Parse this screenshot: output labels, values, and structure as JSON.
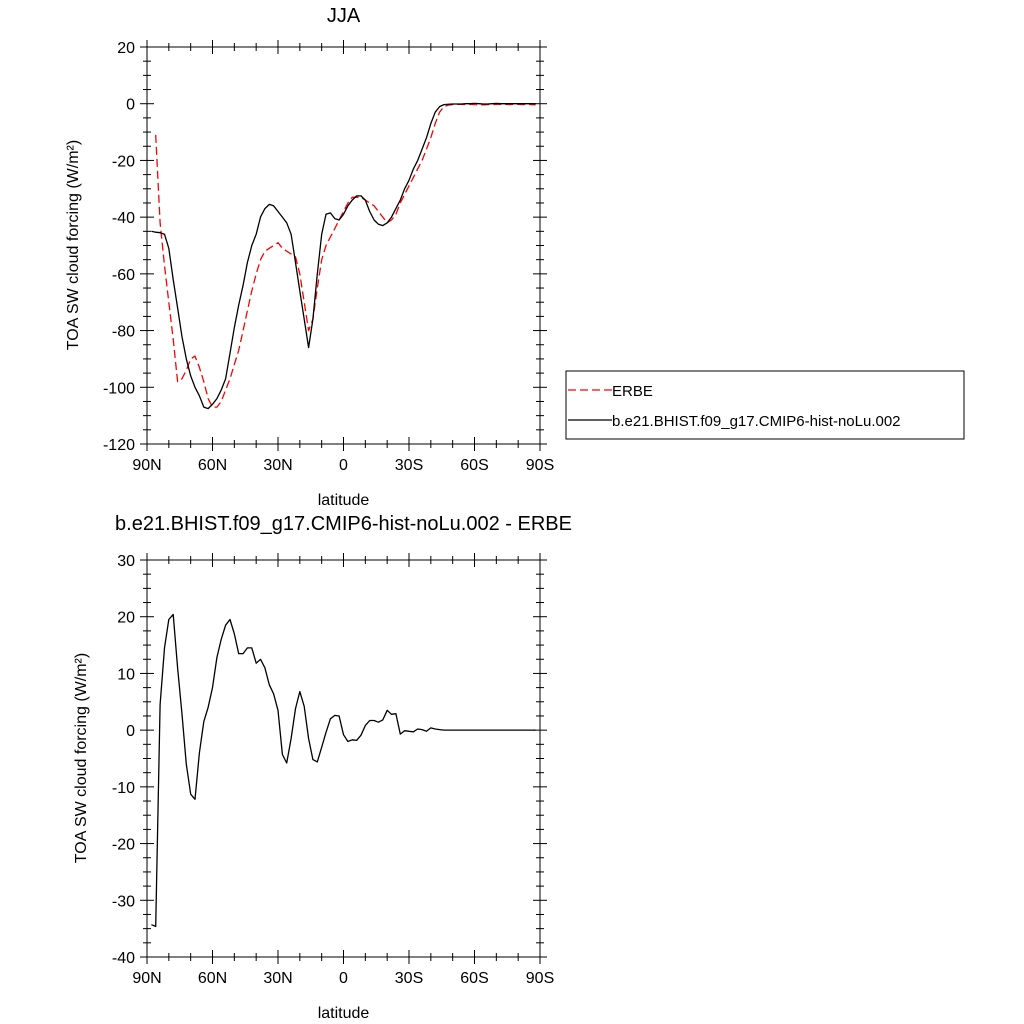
{
  "chart_data": [
    {
      "type": "line",
      "title": "JJA",
      "xlabel": "latitude",
      "ylabel": "TOA SW cloud forcing (W/m²)",
      "xlim": [
        90,
        -90
      ],
      "ylim": [
        -120,
        20
      ],
      "xticks": [
        {
          "value": 90,
          "label": "90N"
        },
        {
          "value": 60,
          "label": "60N"
        },
        {
          "value": 30,
          "label": "30N"
        },
        {
          "value": 0,
          "label": "0"
        },
        {
          "value": -30,
          "label": "30S"
        },
        {
          "value": -60,
          "label": "60S"
        },
        {
          "value": -90,
          "label": "90S"
        }
      ],
      "yticks": [
        {
          "value": 20,
          "label": "20"
        },
        {
          "value": 0,
          "label": "0"
        },
        {
          "value": -20,
          "label": "-20"
        },
        {
          "value": -40,
          "label": "-40"
        },
        {
          "value": -60,
          "label": "-60"
        },
        {
          "value": -80,
          "label": "-80"
        },
        {
          "value": -100,
          "label": "-100"
        },
        {
          "value": -120,
          "label": "-120"
        }
      ],
      "legend": "right",
      "series": [
        {
          "name": "ERBE",
          "color": "#ff0000",
          "dash": "dashed",
          "x": [
            86,
            84,
            82,
            80,
            78,
            76,
            74,
            72,
            70,
            68,
            66,
            64,
            62,
            60,
            58,
            56,
            54,
            52,
            50,
            48,
            46,
            44,
            42,
            40,
            38,
            36,
            34,
            32,
            30,
            28,
            26,
            24,
            22,
            20,
            18,
            16,
            14,
            12,
            10,
            8,
            6,
            4,
            2,
            0,
            -2,
            -4,
            -6,
            -8,
            -10,
            -12,
            -14,
            -16,
            -18,
            -20,
            -22,
            -24,
            -26,
            -28,
            -30,
            -32,
            -34,
            -36,
            -38,
            -40,
            -42,
            -44,
            -46,
            -48,
            -50,
            -52,
            -54,
            -56,
            -58,
            -60,
            -62,
            -64,
            -66,
            -68,
            -70,
            -72,
            -74,
            -76,
            -78,
            -80,
            -82,
            -84,
            -86,
            -88
          ],
          "y": [
            -11,
            -42,
            -57,
            -70,
            -83,
            -98,
            -97,
            -94,
            -90,
            -89,
            -93,
            -98,
            -104,
            -107,
            -107,
            -105,
            -101,
            -97,
            -92,
            -87,
            -80,
            -73,
            -66,
            -60,
            -55,
            -52,
            -51,
            -50,
            -49,
            -51,
            -52,
            -53,
            -54,
            -60,
            -70,
            -80,
            -76,
            -65,
            -55,
            -50,
            -47,
            -44,
            -41,
            -38,
            -35,
            -33,
            -33,
            -33,
            -34,
            -35,
            -36,
            -38,
            -40,
            -42,
            -41,
            -39,
            -35,
            -32,
            -29,
            -26,
            -23,
            -20,
            -16,
            -12,
            -7,
            -3,
            -1,
            -0.5,
            -0.3,
            -0.2,
            -0.2,
            -0.3,
            -0.2,
            -0.3,
            -0.4,
            -0.4,
            -0.3,
            -0.3,
            -0.2,
            -0.2,
            -0.2,
            -0.3,
            -0.2,
            -0.2,
            -0.3,
            -0.2,
            -0.3,
            -0.4
          ]
        },
        {
          "name": "b.e21.BHIST.f09_g17.CMIP6-hist-noLu.002",
          "color": "#000000",
          "dash": "solid",
          "x": [
            88,
            86,
            84,
            82,
            80,
            78,
            76,
            74,
            72,
            70,
            68,
            66,
            64,
            62,
            60,
            58,
            56,
            54,
            52,
            50,
            48,
            46,
            44,
            42,
            40,
            38,
            36,
            34,
            32,
            30,
            28,
            26,
            24,
            22,
            20,
            18,
            16,
            14,
            12,
            10,
            8,
            6,
            4,
            2,
            0,
            -2,
            -4,
            -6,
            -8,
            -10,
            -12,
            -14,
            -16,
            -18,
            -20,
            -22,
            -24,
            -26,
            -28,
            -30,
            -32,
            -34,
            -36,
            -38,
            -40,
            -42,
            -44,
            -46,
            -48,
            -50,
            -52,
            -54,
            -56,
            -58,
            -60,
            -62,
            -64,
            -66,
            -68,
            -70,
            -72,
            -74,
            -76,
            -78,
            -80,
            -82,
            -84,
            -86,
            -88
          ],
          "y": [
            -45,
            -45.3,
            -45.5,
            -46,
            -51,
            -62,
            -72,
            -82,
            -90,
            -96,
            -100,
            -103,
            -107,
            -107.5,
            -106,
            -104,
            -101,
            -97,
            -88,
            -79,
            -71,
            -64,
            -56,
            -50,
            -46,
            -40,
            -37,
            -35.5,
            -36,
            -38,
            -40,
            -42,
            -46,
            -56,
            -66,
            -76,
            -86,
            -76,
            -60,
            -46,
            -39,
            -38.5,
            -40.5,
            -41,
            -39,
            -36,
            -34,
            -32.5,
            -32.5,
            -34,
            -38,
            -41,
            -42.5,
            -43,
            -42,
            -40,
            -37,
            -34,
            -30,
            -27,
            -23,
            -20,
            -16,
            -12,
            -7,
            -3,
            -1,
            -0.3,
            -0.2,
            -0.1,
            -0.1,
            -0.1,
            0,
            0,
            0.1,
            0,
            -0.1,
            -0.1,
            0,
            0.1,
            0,
            0,
            0,
            0,
            0,
            0,
            0,
            0,
            0
          ]
        }
      ]
    },
    {
      "type": "line",
      "title": "b.e21.BHIST.f09_g17.CMIP6-hist-noLu.002 - ERBE",
      "xlabel": "latitude",
      "ylabel": "TOA SW cloud forcing (W/m²)",
      "xlim": [
        90,
        -90
      ],
      "ylim": [
        -40,
        30
      ],
      "xticks": [
        {
          "value": 90,
          "label": "90N"
        },
        {
          "value": 60,
          "label": "60N"
        },
        {
          "value": 30,
          "label": "30N"
        },
        {
          "value": 0,
          "label": "0"
        },
        {
          "value": -30,
          "label": "30S"
        },
        {
          "value": -60,
          "label": "60S"
        },
        {
          "value": -90,
          "label": "90S"
        }
      ],
      "yticks": [
        {
          "value": 30,
          "label": "30"
        },
        {
          "value": 20,
          "label": "20"
        },
        {
          "value": 10,
          "label": "10"
        },
        {
          "value": 0,
          "label": "0"
        },
        {
          "value": -10,
          "label": "-10"
        },
        {
          "value": -20,
          "label": "-20"
        },
        {
          "value": -30,
          "label": "-30"
        },
        {
          "value": -40,
          "label": "-40"
        }
      ],
      "series": [
        {
          "name": "",
          "color": "#000000",
          "dash": "solid",
          "x": [
            88,
            86,
            84,
            82,
            80,
            78,
            76,
            74,
            72,
            70,
            68,
            66,
            64,
            62,
            60,
            58,
            56,
            54,
            52,
            50,
            48,
            46,
            44,
            42,
            40,
            38,
            36,
            34,
            32,
            30,
            28,
            26,
            24,
            22,
            20,
            18,
            16,
            14,
            12,
            10,
            8,
            6,
            4,
            2,
            0,
            -2,
            -4,
            -6,
            -8,
            -10,
            -12,
            -14,
            -16,
            -18,
            -20,
            -22,
            -24,
            -26,
            -28,
            -30,
            -32,
            -34,
            -36,
            -38,
            -40,
            -42,
            -44,
            -46,
            -48,
            -50,
            -52,
            -54,
            -56,
            -58,
            -60,
            -62,
            -64,
            -66,
            -68,
            -70,
            -72,
            -74,
            -76,
            -78,
            -80,
            -82,
            -84,
            -86,
            -88
          ],
          "y": [
            -34.3,
            -34.6,
            4.5,
            14.5,
            19.5,
            20.4,
            11,
            3,
            -6,
            -11.3,
            -12.2,
            -4,
            1.5,
            4,
            7.5,
            12.8,
            16,
            18.5,
            19.5,
            17,
            13.5,
            13.5,
            14.5,
            14.5,
            11.8,
            12.5,
            11,
            8,
            6.4,
            3.5,
            -4.3,
            -5.8,
            -1.5,
            3.8,
            6.8,
            4.2,
            -1.5,
            -5.2,
            -5.6,
            -3,
            -0.4,
            2,
            2.6,
            2.5,
            -0.8,
            -2,
            -1.7,
            -1.8,
            -0.9,
            0.8,
            1.7,
            1.7,
            1.4,
            1.8,
            3.5,
            2.8,
            2.9,
            -0.7,
            -0.1,
            -0.2,
            -0.3,
            0.2,
            0.1,
            -0.2,
            0.4,
            0.2,
            0.1,
            0,
            0,
            0,
            0,
            0,
            0,
            0,
            0,
            0,
            0,
            0,
            0,
            0,
            0,
            0,
            0,
            0,
            0,
            0,
            0,
            0,
            0
          ]
        }
      ]
    }
  ]
}
